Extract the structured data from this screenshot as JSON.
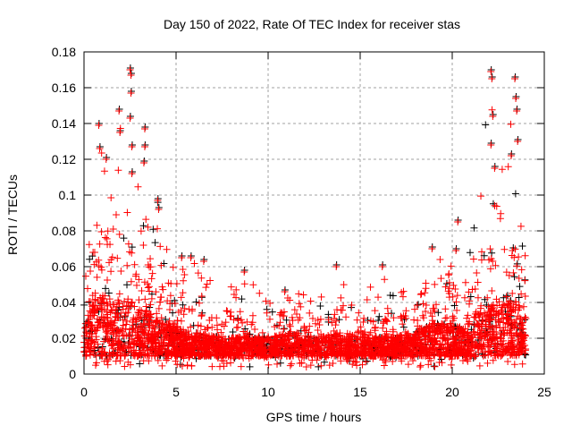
{
  "chart_data": {
    "type": "scatter",
    "title": "Day 150 of 2022, Rate Of TEC Index for receiver stas",
    "xlabel": "GPS time / hours",
    "ylabel": "ROTI / TECUs",
    "xlim": [
      0,
      25
    ],
    "ylim": [
      0,
      0.18
    ],
    "xticks": [
      "0",
      "5",
      "10",
      "15",
      "20",
      "25"
    ],
    "xtick_values": [
      0,
      5,
      10,
      15,
      20,
      25
    ],
    "yticks": [
      "0",
      "0.02",
      "0.04",
      "0.06",
      "0.08",
      "0.1",
      "0.12",
      "0.14",
      "0.16",
      "0.18"
    ],
    "ytick_values": [
      0,
      0.02,
      0.04,
      0.06,
      0.08,
      0.1,
      0.12,
      0.14,
      0.16,
      0.18
    ],
    "grid": true,
    "marker": "+",
    "series_colors": {
      "black": "#000000",
      "red": "#ff0000"
    },
    "envelope": {
      "hours": [
        0,
        0.5,
        1,
        1.5,
        2,
        2.5,
        3,
        3.5,
        4,
        5,
        6,
        7,
        8,
        9,
        10,
        11,
        12,
        13,
        14,
        15,
        16,
        17,
        18,
        19,
        20,
        20.5,
        21,
        22,
        22.5,
        23,
        23.5,
        24
      ],
      "typical": [
        0.04,
        0.07,
        0.08,
        0.07,
        0.08,
        0.07,
        0.06,
        0.06,
        0.05,
        0.04,
        0.035,
        0.03,
        0.03,
        0.03,
        0.03,
        0.035,
        0.03,
        0.03,
        0.035,
        0.03,
        0.03,
        0.03,
        0.035,
        0.045,
        0.045,
        0.04,
        0.05,
        0.07,
        0.06,
        0.07,
        0.07,
        0.05
      ],
      "max": [
        0.07,
        0.1,
        0.14,
        0.1,
        0.147,
        0.17,
        0.14,
        0.1,
        0.097,
        0.065,
        0.065,
        0.063,
        0.05,
        0.057,
        0.045,
        0.046,
        0.05,
        0.045,
        0.06,
        0.05,
        0.06,
        0.045,
        0.05,
        0.07,
        0.06,
        0.085,
        0.07,
        0.169,
        0.12,
        0.135,
        0.165,
        0.06
      ],
      "min": 0.004
    },
    "peaks": [
      [
        0.8,
        0.139
      ],
      [
        0.85,
        0.126
      ],
      [
        1.2,
        0.12
      ],
      [
        1.9,
        0.147
      ],
      [
        1.95,
        0.135
      ],
      [
        2.5,
        0.17
      ],
      [
        2.55,
        0.167
      ],
      [
        2.55,
        0.157
      ],
      [
        2.5,
        0.143
      ],
      [
        2.6,
        0.127
      ],
      [
        2.6,
        0.112
      ],
      [
        3.3,
        0.137
      ],
      [
        3.3,
        0.127
      ],
      [
        3.25,
        0.118
      ],
      [
        4.0,
        0.097
      ],
      [
        4.05,
        0.092
      ],
      [
        5.3,
        0.065
      ],
      [
        5.8,
        0.065
      ],
      [
        6.5,
        0.063
      ],
      [
        8.7,
        0.057
      ],
      [
        10.9,
        0.046
      ],
      [
        13.7,
        0.06
      ],
      [
        16.2,
        0.06
      ],
      [
        18.9,
        0.07
      ],
      [
        20.3,
        0.085
      ],
      [
        20.2,
        0.069
      ],
      [
        22.1,
        0.169
      ],
      [
        22.15,
        0.165
      ],
      [
        22.2,
        0.144
      ],
      [
        22.1,
        0.128
      ],
      [
        22.3,
        0.115
      ],
      [
        23.4,
        0.165
      ],
      [
        23.45,
        0.154
      ],
      [
        23.5,
        0.147
      ],
      [
        23.55,
        0.13
      ],
      [
        23.2,
        0.122
      ]
    ]
  }
}
